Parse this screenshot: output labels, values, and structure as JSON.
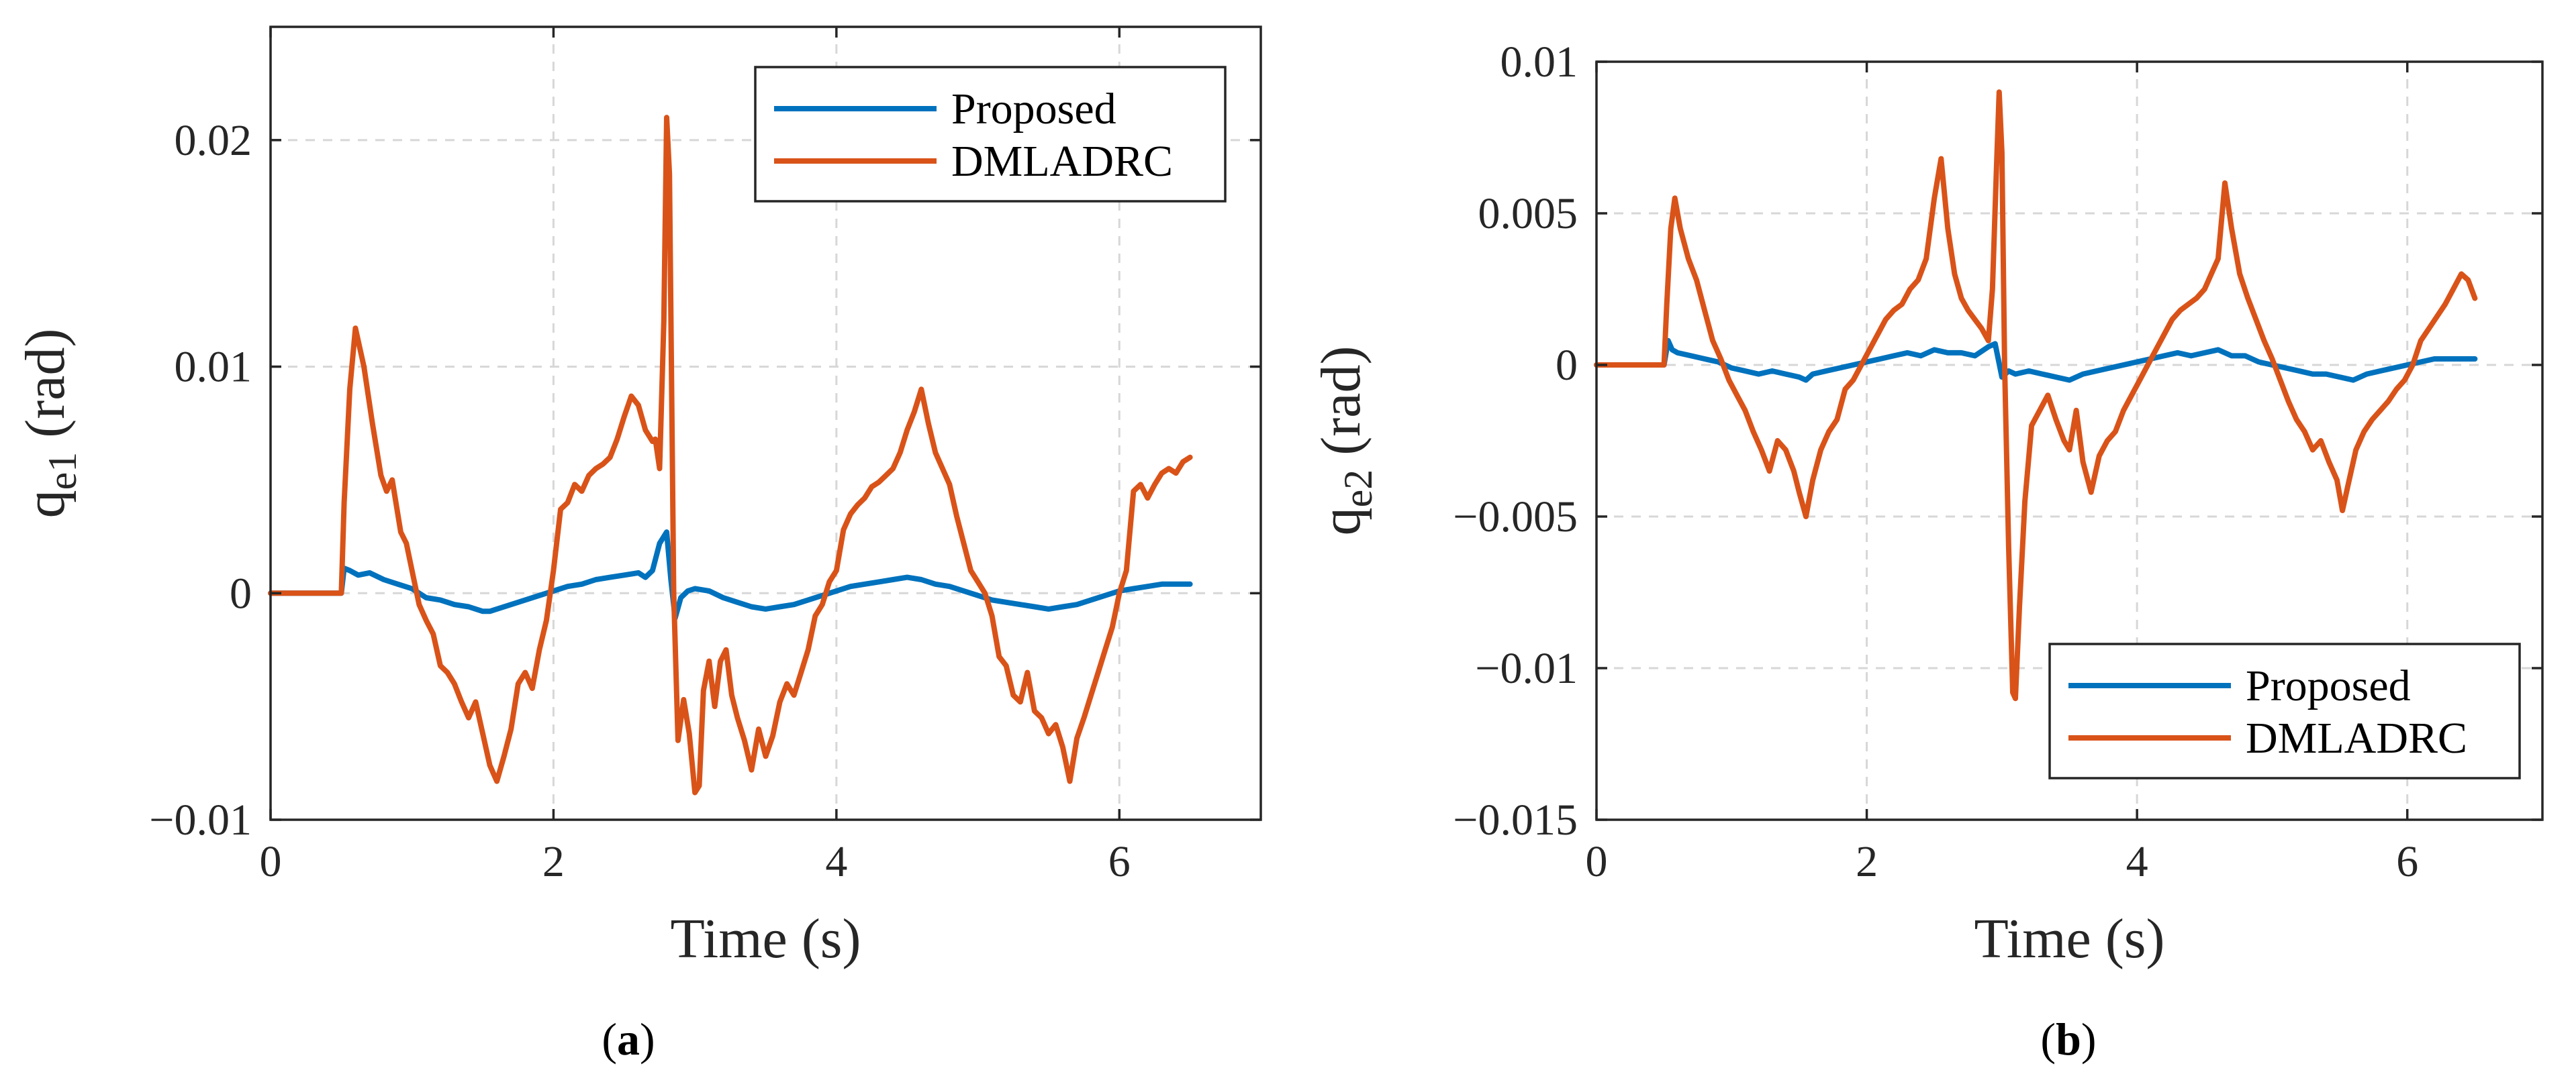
{
  "chart_data": [
    {
      "type": "line",
      "panel_label": "a",
      "xlabel": "Time (s)",
      "ylabel_main": "q",
      "ylabel_sub": "e1",
      "ylabel_unit": " (rad)",
      "xlim": [
        0,
        7
      ],
      "ylim": [
        -0.01,
        0.025
      ],
      "xticks": [
        0,
        2,
        4,
        6
      ],
      "xtick_labels": [
        "0",
        "2",
        "4",
        "6"
      ],
      "yticks": [
        -0.01,
        0,
        0.01,
        0.02
      ],
      "ytick_labels": [
        "−0.01",
        "0",
        "0.01",
        "0.02"
      ],
      "grid": true,
      "legend_position": "top-right",
      "series": [
        {
          "name": "Proposed",
          "color": "#0072BD",
          "x": [
            0,
            0.5,
            0.52,
            0.56,
            0.62,
            0.7,
            0.8,
            0.9,
            1.0,
            1.1,
            1.2,
            1.3,
            1.4,
            1.5,
            1.55,
            1.6,
            1.7,
            1.8,
            1.9,
            2.0,
            2.1,
            2.2,
            2.3,
            2.4,
            2.5,
            2.6,
            2.65,
            2.7,
            2.75,
            2.8,
            2.83,
            2.86,
            2.9,
            2.95,
            3.0,
            3.1,
            3.2,
            3.3,
            3.4,
            3.5,
            3.6,
            3.7,
            3.8,
            3.9,
            4.0,
            4.1,
            4.2,
            4.3,
            4.4,
            4.5,
            4.6,
            4.7,
            4.8,
            4.9,
            5.0,
            5.1,
            5.2,
            5.3,
            5.4,
            5.5,
            5.6,
            5.7,
            5.8,
            5.9,
            6.0,
            6.1,
            6.2,
            6.3,
            6.4,
            6.5
          ],
          "values": [
            0,
            0,
            0.0011,
            0.001,
            0.0008,
            0.0009,
            0.0006,
            0.0004,
            0.0002,
            -0.0002,
            -0.0003,
            -0.0005,
            -0.0006,
            -0.0008,
            -0.0008,
            -0.0007,
            -0.0005,
            -0.0003,
            -0.0001,
            0.0001,
            0.0003,
            0.0004,
            0.0006,
            0.0007,
            0.0008,
            0.0009,
            0.0007,
            0.001,
            0.0022,
            0.0027,
            0.0006,
            -0.0011,
            -0.0002,
            0.0001,
            0.0002,
            0.0001,
            -0.0002,
            -0.0004,
            -0.0006,
            -0.0007,
            -0.0006,
            -0.0005,
            -0.0003,
            -0.0001,
            0.0001,
            0.0003,
            0.0004,
            0.0005,
            0.0006,
            0.0007,
            0.0006,
            0.0004,
            0.0003,
            0.0001,
            -0.0001,
            -0.0003,
            -0.0004,
            -0.0005,
            -0.0006,
            -0.0007,
            -0.0006,
            -0.0005,
            -0.0003,
            -0.0001,
            0.0001,
            0.0002,
            0.0003,
            0.0004,
            0.0004,
            0.0004
          ]
        },
        {
          "name": "DMLADRC",
          "color": "#D95319",
          "x": [
            0,
            0.5,
            0.52,
            0.56,
            0.6,
            0.66,
            0.72,
            0.78,
            0.82,
            0.86,
            0.92,
            0.96,
            1.0,
            1.05,
            1.1,
            1.15,
            1.2,
            1.25,
            1.3,
            1.35,
            1.4,
            1.45,
            1.5,
            1.55,
            1.6,
            1.65,
            1.7,
            1.75,
            1.8,
            1.85,
            1.9,
            1.95,
            2.0,
            2.05,
            2.1,
            2.15,
            2.2,
            2.25,
            2.3,
            2.35,
            2.4,
            2.45,
            2.5,
            2.55,
            2.6,
            2.65,
            2.7,
            2.72,
            2.75,
            2.78,
            2.8,
            2.82,
            2.85,
            2.88,
            2.92,
            2.96,
            3.0,
            3.03,
            3.06,
            3.1,
            3.14,
            3.18,
            3.22,
            3.26,
            3.3,
            3.35,
            3.4,
            3.45,
            3.5,
            3.55,
            3.6,
            3.65,
            3.7,
            3.75,
            3.8,
            3.85,
            3.9,
            3.95,
            4.0,
            4.05,
            4.1,
            4.15,
            4.2,
            4.25,
            4.3,
            4.35,
            4.4,
            4.45,
            4.5,
            4.55,
            4.6,
            4.65,
            4.7,
            4.75,
            4.8,
            4.85,
            4.9,
            4.95,
            5.0,
            5.05,
            5.1,
            5.15,
            5.2,
            5.25,
            5.3,
            5.35,
            5.4,
            5.45,
            5.5,
            5.55,
            5.6,
            5.65,
            5.7,
            5.75,
            5.8,
            5.85,
            5.9,
            5.95,
            6.0,
            6.05,
            6.1,
            6.15,
            6.2,
            6.25,
            6.3,
            6.35,
            6.4,
            6.45,
            6.5
          ],
          "values": [
            0,
            0,
            0.004,
            0.009,
            0.0117,
            0.01,
            0.0075,
            0.0052,
            0.0045,
            0.005,
            0.0027,
            0.0022,
            0.001,
            -0.0005,
            -0.0012,
            -0.0018,
            -0.0032,
            -0.0035,
            -0.004,
            -0.0048,
            -0.0055,
            -0.0048,
            -0.0062,
            -0.0076,
            -0.0083,
            -0.0072,
            -0.006,
            -0.004,
            -0.0035,
            -0.0042,
            -0.0025,
            -0.0012,
            0.001,
            0.0037,
            0.004,
            0.0048,
            0.0045,
            0.0052,
            0.0055,
            0.0057,
            0.006,
            0.0068,
            0.0078,
            0.0087,
            0.0083,
            0.0072,
            0.0067,
            0.0068,
            0.0055,
            0.012,
            0.021,
            0.0185,
            0.0,
            -0.0065,
            -0.0047,
            -0.0062,
            -0.0088,
            -0.0085,
            -0.0043,
            -0.003,
            -0.005,
            -0.003,
            -0.0025,
            -0.0045,
            -0.0055,
            -0.0065,
            -0.0078,
            -0.006,
            -0.0072,
            -0.0063,
            -0.0048,
            -0.004,
            -0.0045,
            -0.0035,
            -0.0025,
            -0.001,
            -0.0005,
            0.0005,
            0.001,
            0.0028,
            0.0035,
            0.0039,
            0.0042,
            0.0047,
            0.0049,
            0.0052,
            0.0055,
            0.0062,
            0.0072,
            0.008,
            0.009,
            0.0075,
            0.0062,
            0.0055,
            0.0048,
            0.0034,
            0.0022,
            0.001,
            0.0005,
            0.0,
            -0.001,
            -0.0028,
            -0.0032,
            -0.0045,
            -0.0048,
            -0.0035,
            -0.0052,
            -0.0055,
            -0.0062,
            -0.0058,
            -0.0068,
            -0.0083,
            -0.0064,
            -0.0055,
            -0.0045,
            -0.0035,
            -0.0025,
            -0.0015,
            0.0,
            0.001,
            0.0045,
            0.0048,
            0.0042,
            0.0048,
            0.0053,
            0.0055,
            0.0053,
            0.0058,
            0.006
          ]
        }
      ]
    },
    {
      "type": "line",
      "panel_label": "b",
      "xlabel": "Time (s)",
      "ylabel_main": "q",
      "ylabel_sub": "e2",
      "ylabel_unit": " (rad)",
      "xlim": [
        0,
        7
      ],
      "ylim": [
        -0.015,
        0.01
      ],
      "xticks": [
        0,
        2,
        4,
        6
      ],
      "xtick_labels": [
        "0",
        "2",
        "4",
        "6"
      ],
      "yticks": [
        -0.015,
        -0.01,
        -0.005,
        0,
        0.005,
        0.01
      ],
      "ytick_labels": [
        "−0.015",
        "−0.01",
        "−0.005",
        "0",
        "0.005",
        "0.01"
      ],
      "grid": true,
      "legend_position": "bottom-right",
      "series": [
        {
          "name": "Proposed",
          "color": "#0072BD",
          "x": [
            0,
            0.5,
            0.53,
            0.56,
            0.6,
            0.7,
            0.8,
            0.9,
            1.0,
            1.1,
            1.2,
            1.3,
            1.4,
            1.5,
            1.55,
            1.6,
            1.7,
            1.8,
            1.9,
            2.0,
            2.1,
            2.2,
            2.3,
            2.4,
            2.5,
            2.6,
            2.7,
            2.8,
            2.9,
            2.95,
            3.0,
            3.05,
            3.1,
            3.2,
            3.3,
            3.4,
            3.5,
            3.6,
            3.7,
            3.8,
            3.9,
            4.0,
            4.1,
            4.2,
            4.3,
            4.4,
            4.5,
            4.6,
            4.7,
            4.8,
            4.9,
            5.0,
            5.1,
            5.2,
            5.3,
            5.4,
            5.5,
            5.6,
            5.7,
            5.8,
            5.9,
            6.0,
            6.1,
            6.2,
            6.3,
            6.4,
            6.5
          ],
          "values": [
            0,
            0,
            0.0008,
            0.0005,
            0.0004,
            0.0003,
            0.0002,
            0.0001,
            -0.0001,
            -0.0002,
            -0.0003,
            -0.0002,
            -0.0003,
            -0.0004,
            -0.0005,
            -0.0003,
            -0.0002,
            -0.0001,
            0.0,
            0.0001,
            0.0002,
            0.0003,
            0.0004,
            0.0003,
            0.0005,
            0.0004,
            0.0004,
            0.0003,
            0.0006,
            0.0007,
            -0.0004,
            -0.0002,
            -0.0003,
            -0.0002,
            -0.0003,
            -0.0004,
            -0.0005,
            -0.0003,
            -0.0002,
            -0.0001,
            0.0,
            0.0001,
            0.0002,
            0.0003,
            0.0004,
            0.0003,
            0.0004,
            0.0005,
            0.0003,
            0.0003,
            0.0001,
            0.0,
            -0.0001,
            -0.0002,
            -0.0003,
            -0.0003,
            -0.0004,
            -0.0005,
            -0.0003,
            -0.0002,
            -0.0001,
            0.0,
            0.0001,
            0.0002,
            0.0002,
            0.0002,
            0.0002
          ]
        },
        {
          "name": "DMLADRC",
          "color": "#D95319",
          "x": [
            0,
            0.5,
            0.52,
            0.55,
            0.58,
            0.62,
            0.68,
            0.74,
            0.8,
            0.86,
            0.92,
            0.98,
            1.04,
            1.1,
            1.16,
            1.22,
            1.28,
            1.34,
            1.4,
            1.46,
            1.5,
            1.55,
            1.6,
            1.66,
            1.72,
            1.78,
            1.84,
            1.9,
            1.96,
            2.02,
            2.08,
            2.14,
            2.2,
            2.26,
            2.32,
            2.38,
            2.44,
            2.5,
            2.55,
            2.6,
            2.65,
            2.7,
            2.75,
            2.8,
            2.85,
            2.9,
            2.93,
            2.96,
            2.98,
            3.0,
            3.02,
            3.05,
            3.08,
            3.1,
            3.13,
            3.17,
            3.22,
            3.28,
            3.34,
            3.4,
            3.46,
            3.5,
            3.55,
            3.6,
            3.66,
            3.72,
            3.78,
            3.84,
            3.9,
            3.96,
            4.02,
            4.08,
            4.14,
            4.2,
            4.26,
            4.32,
            4.38,
            4.44,
            4.5,
            4.55,
            4.6,
            4.65,
            4.7,
            4.76,
            4.82,
            4.88,
            4.94,
            5.0,
            5.06,
            5.12,
            5.18,
            5.24,
            5.3,
            5.36,
            5.42,
            5.48,
            5.52,
            5.56,
            5.62,
            5.68,
            5.74,
            5.8,
            5.86,
            5.92,
            5.98,
            6.04,
            6.1,
            6.16,
            6.22,
            6.28,
            6.34,
            6.4,
            6.45,
            6.5
          ],
          "values": [
            0,
            0,
            0.002,
            0.0045,
            0.0055,
            0.0045,
            0.0035,
            0.0028,
            0.0018,
            0.0008,
            0.0002,
            -0.0005,
            -0.001,
            -0.0015,
            -0.0022,
            -0.0028,
            -0.0035,
            -0.0025,
            -0.0028,
            -0.0035,
            -0.0042,
            -0.005,
            -0.0038,
            -0.0028,
            -0.0022,
            -0.0018,
            -0.0008,
            -0.0005,
            0.0,
            0.0005,
            0.001,
            0.0015,
            0.0018,
            0.002,
            0.0025,
            0.0028,
            0.0035,
            0.0055,
            0.0068,
            0.0045,
            0.003,
            0.0022,
            0.0018,
            0.0015,
            0.0012,
            0.0008,
            0.0025,
            0.0065,
            0.009,
            0.007,
            0.0,
            -0.006,
            -0.0108,
            -0.011,
            -0.008,
            -0.0045,
            -0.002,
            -0.0015,
            -0.001,
            -0.0018,
            -0.0025,
            -0.0028,
            -0.0015,
            -0.0032,
            -0.0042,
            -0.003,
            -0.0025,
            -0.0022,
            -0.0015,
            -0.001,
            -0.0005,
            0.0,
            0.0005,
            0.001,
            0.0015,
            0.0018,
            0.002,
            0.0022,
            0.0025,
            0.003,
            0.0035,
            0.006,
            0.0045,
            0.003,
            0.0022,
            0.0015,
            0.0008,
            0.0002,
            -0.0005,
            -0.0012,
            -0.0018,
            -0.0022,
            -0.0028,
            -0.0025,
            -0.0032,
            -0.0038,
            -0.0048,
            -0.004,
            -0.0028,
            -0.0022,
            -0.0018,
            -0.0015,
            -0.0012,
            -0.0008,
            -0.0005,
            0.0,
            0.0008,
            0.0012,
            0.0016,
            0.002,
            0.0025,
            0.003,
            0.0028,
            0.0022
          ]
        }
      ]
    }
  ]
}
